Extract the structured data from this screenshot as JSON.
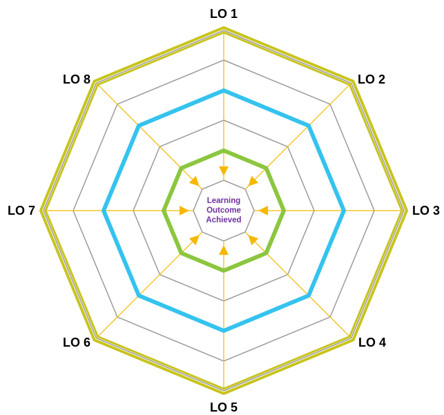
{
  "center": {
    "lines": [
      "Learning",
      "Outcome",
      "Achieved"
    ]
  },
  "axes": [
    {
      "label": "LO 1"
    },
    {
      "label": "LO 2"
    },
    {
      "label": "LO 3"
    },
    {
      "label": "LO 4"
    },
    {
      "label": "LO 5"
    },
    {
      "label": "LO 6"
    },
    {
      "label": "LO 7"
    },
    {
      "label": "LO 8"
    }
  ],
  "rings": {
    "count": 6,
    "highlighted": [
      {
        "level": 2,
        "color": "#8cc63f"
      },
      {
        "level": 4,
        "color": "#35c3ee"
      },
      {
        "level": 6,
        "color": "#c8c41b"
      }
    ]
  },
  "colors": {
    "grid": "#9a9a9a",
    "spoke": "#f5b800",
    "arrow": "#f5b800",
    "center_text": "#7030a0"
  }
}
